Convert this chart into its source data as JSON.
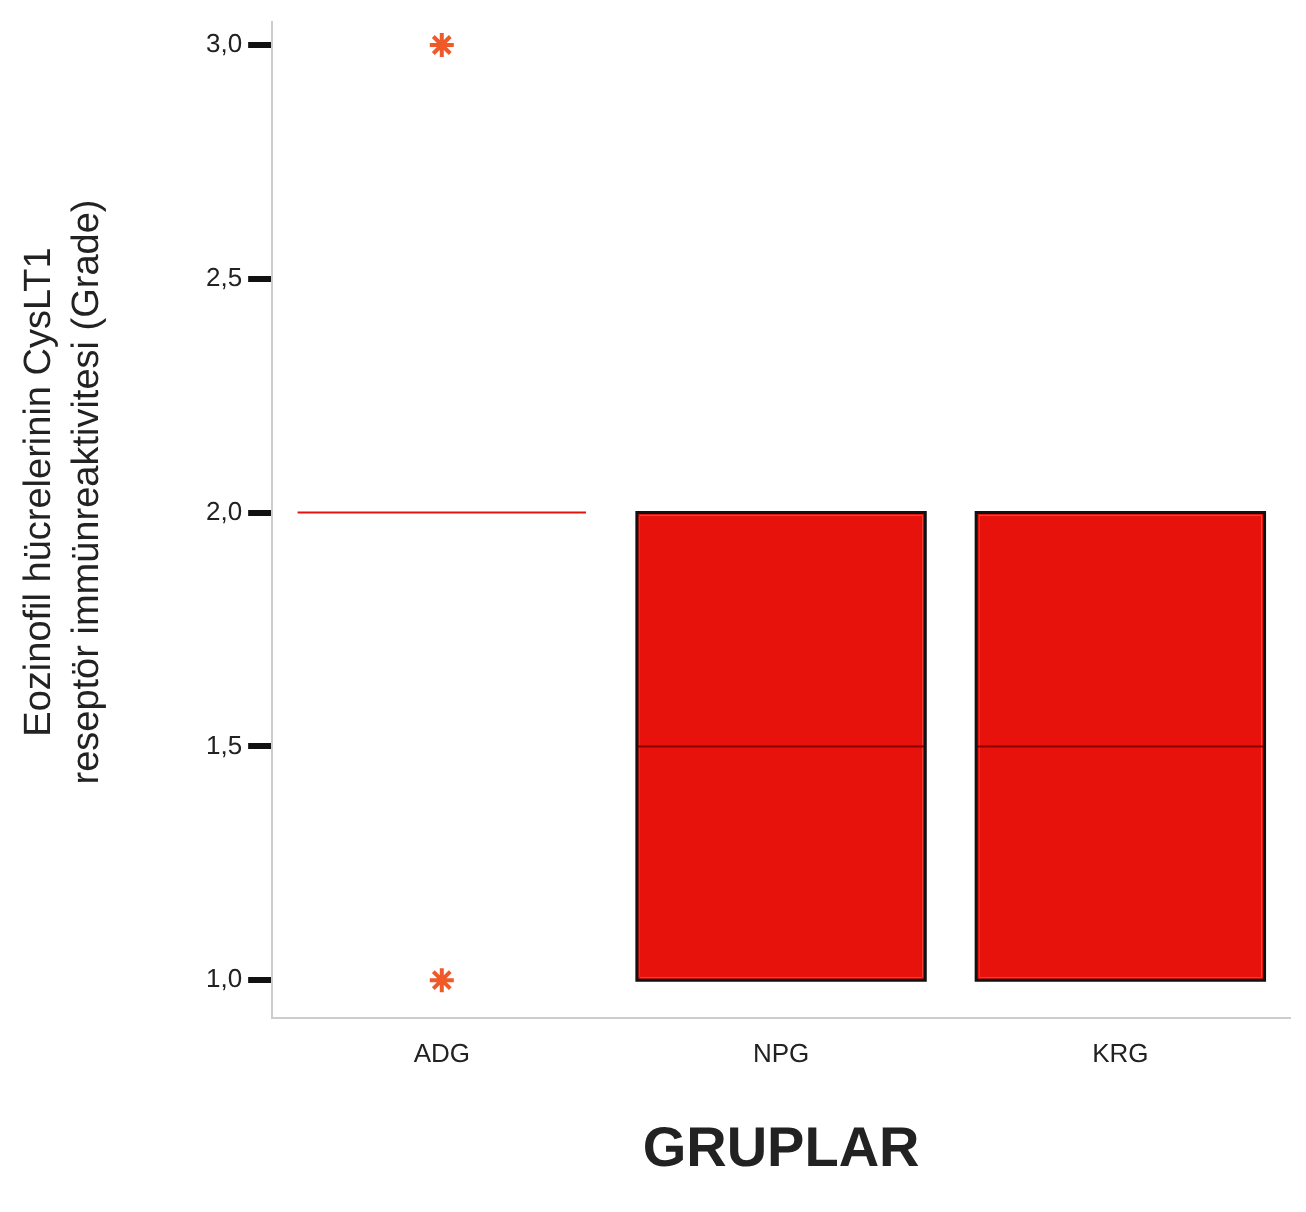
{
  "chart_data": {
    "type": "box",
    "xlabel": "GRUPLAR",
    "ylabel": "Eozinofil hücrelerinin CysLT1 reseptör immünreaktivitesi (Grade)",
    "categories": [
      "ADG",
      "NPG",
      "KRG"
    ],
    "series": [
      {
        "color": "#e8120c",
        "boxes": [
          {
            "low": 2,
            "q1": 2,
            "median": 2,
            "q3": 2,
            "high": 2,
            "outliers": [
              1,
              3
            ]
          },
          {
            "low": 1,
            "q1": 1,
            "median": 1.5,
            "q3": 2,
            "high": 2
          },
          {
            "low": 1,
            "q1": 1,
            "median": 1.5,
            "q3": 2,
            "high": 2
          }
        ]
      }
    ],
    "ylim": [
      0.92,
      3.05
    ],
    "yticks": [
      {
        "value": 1,
        "label": "1,0"
      },
      {
        "value": 1.5,
        "label": "1,5"
      },
      {
        "value": 2,
        "label": "2,0"
      },
      {
        "value": 2.5,
        "label": "2,5"
      },
      {
        "value": 3,
        "label": "3,0"
      }
    ],
    "marker": "star",
    "grid": false,
    "legend": false
  }
}
